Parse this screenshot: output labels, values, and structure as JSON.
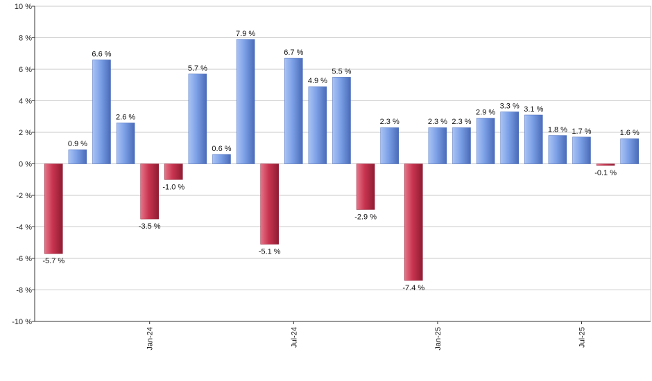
{
  "chart_data": {
    "type": "bar",
    "categories": [
      "Sep-23",
      "Oct-23",
      "Nov-23",
      "Dec-23",
      "Jan-24",
      "Feb-24",
      "Mar-24",
      "Apr-24",
      "May-24",
      "Jun-24",
      "Jul-24",
      "Aug-24",
      "Sep-24",
      "Oct-24",
      "Nov-24",
      "Dec-24",
      "Jan-25",
      "Feb-25",
      "Mar-25",
      "Apr-25",
      "May-25",
      "Jun-25",
      "Jul-25",
      "Aug-25",
      "Sep-25"
    ],
    "values": [
      -5.7,
      0.9,
      6.6,
      2.6,
      -3.5,
      -1.0,
      5.7,
      0.6,
      7.9,
      -5.1,
      6.7,
      4.9,
      5.5,
      -2.9,
      2.3,
      -7.4,
      2.3,
      2.3,
      2.9,
      3.3,
      3.1,
      1.8,
      1.7,
      -0.1,
      1.6
    ],
    "data_labels": [
      "-5.7 %",
      "0.9 %",
      "6.6 %",
      "2.6 %",
      "-3.5 %",
      "-1.0 %",
      "5.7 %",
      "0.6 %",
      "7.9 %",
      "-5.1 %",
      "6.7 %",
      "4.9 %",
      "5.5 %",
      "-2.9 %",
      "2.3 %",
      "-7.4 %",
      "2.3 %",
      "2.3 %",
      "2.9 %",
      "3.3 %",
      "3.1 %",
      "1.8 %",
      "1.7 %",
      "-0.1 %",
      "1.6 %"
    ],
    "y_ticks": [
      10,
      8,
      6,
      4,
      2,
      0,
      -2,
      -4,
      -6,
      -8,
      -10
    ],
    "y_tick_labels": [
      "10 %",
      "8 %",
      "6 %",
      "4 %",
      "2 %",
      "0 %",
      "-2 %",
      "-4 %",
      "-6 %",
      "-8 %",
      "-10 %"
    ],
    "x_tick_labels": [
      {
        "label": "Jan-24",
        "category": "Jan-24"
      },
      {
        "label": "Jul-24",
        "category": "Jul-24"
      },
      {
        "label": "Jan-25",
        "category": "Jan-25"
      },
      {
        "label": "Jul-25",
        "category": "Jul-25"
      }
    ],
    "ylim": [
      -10,
      10
    ],
    "grid": true,
    "title": "",
    "xlabel": "",
    "ylabel": "",
    "colors": {
      "positive": "#7b9fe6",
      "positive_light": "#a9c4f5",
      "positive_dark": "#4a6bb8",
      "negative": "#c8344f",
      "negative_light": "#e6768a",
      "negative_dark": "#8f1c33",
      "grid": "#c8c8c8",
      "axis": "#333333"
    }
  }
}
